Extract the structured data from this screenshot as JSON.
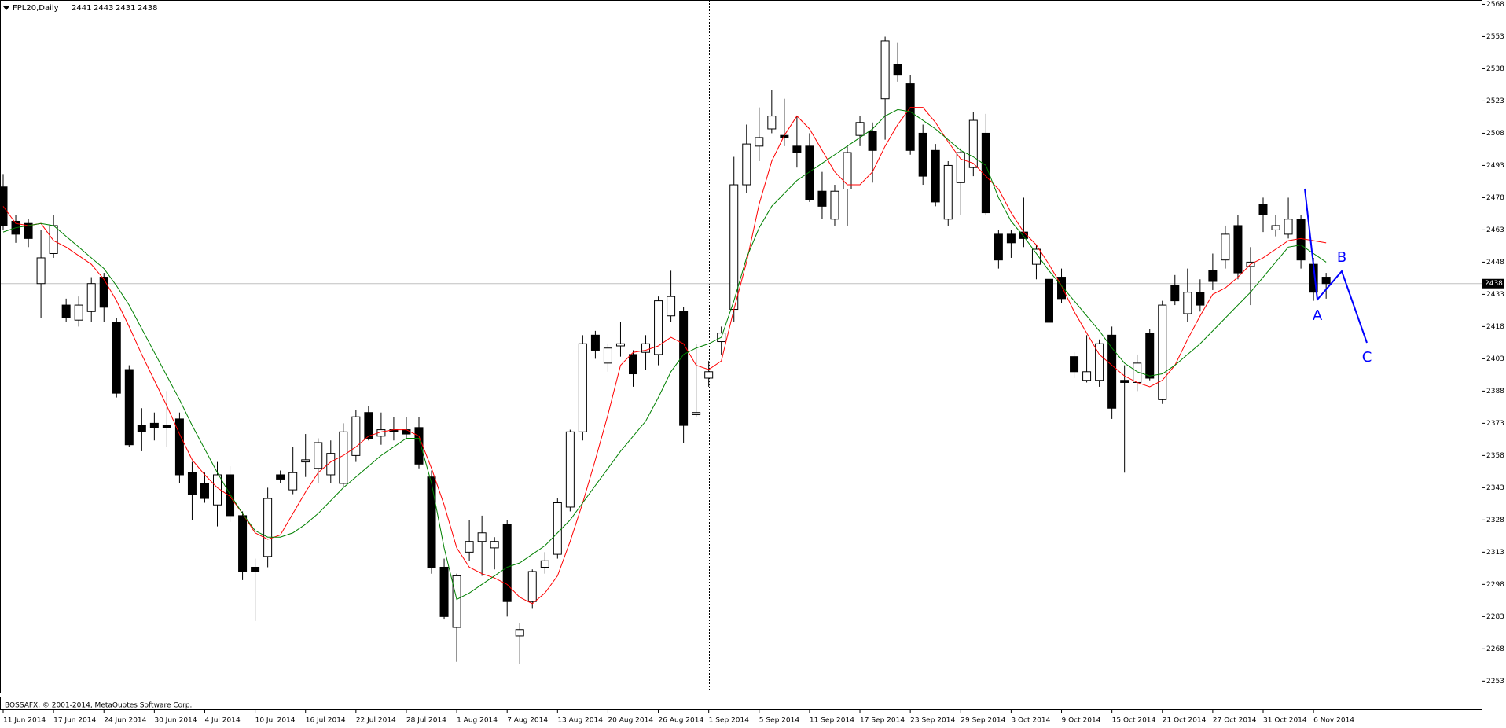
{
  "chart_data": {
    "type": "candlestick",
    "title": "FPL20,Daily",
    "copyright": "BOSSAFX, © 2001-2014, MetaQuotes Software Corp.",
    "categories": [
      "11 Jun 2014",
      null,
      null,
      null,
      "17 Jun 2014",
      null,
      null,
      null,
      "24 Jun 2014",
      null,
      null,
      null,
      "30 Jun 2014",
      null,
      null,
      null,
      "4 Jul 2014",
      null,
      null,
      null,
      "10 Jul 2014",
      null,
      null,
      null,
      "16 Jul 2014",
      null,
      null,
      null,
      "22 Jul 2014",
      null,
      null,
      null,
      "28 Jul 2014",
      null,
      null,
      null,
      "1 Aug 2014",
      null,
      null,
      null,
      "7 Aug 2014",
      null,
      null,
      null,
      "13 Aug 2014",
      null,
      null,
      null,
      "20 Aug 2014",
      null,
      null,
      null,
      "26 Aug 2014",
      null,
      null,
      null,
      "1 Sep 2014",
      null,
      null,
      null,
      "5 Sep 2014",
      null,
      null,
      null,
      "11 Sep 2014",
      null,
      null,
      null,
      "17 Sep 2014",
      null,
      null,
      null,
      "23 Sep 2014",
      null,
      null,
      null,
      "29 Sep 2014",
      null,
      null,
      null,
      "3 Oct 2014",
      null,
      null,
      null,
      "9 Oct 2014",
      null,
      null,
      null,
      "15 Oct 2014",
      null,
      null,
      null,
      "21 Oct 2014",
      null,
      null,
      null,
      "27 Oct 2014",
      null,
      null,
      null,
      "31 Oct 2014",
      null,
      null,
      null,
      "6 Nov 2014",
      null
    ],
    "open": [
      2483,
      2467,
      2466,
      2438,
      2452,
      2428,
      2421,
      2425,
      2441,
      2420,
      2398,
      2372,
      2373,
      2372,
      2375,
      2350,
      2345,
      2335,
      2349,
      2330,
      2306,
      2311,
      2349,
      2342,
      2355,
      2352,
      2349,
      2345,
      2358,
      2378,
      2367,
      2370,
      2370,
      2371,
      2348,
      2306,
      2278,
      2313,
      2318,
      2315,
      2326,
      2274,
      2290,
      2306,
      2312,
      2334,
      2369,
      2414,
      2401,
      2409,
      2405,
      2406,
      2405,
      2423,
      2425,
      2377,
      2394,
      2411,
      2426,
      2484,
      2502,
      2510,
      2507,
      2502,
      2502,
      2481,
      2468,
      2482,
      2507,
      2509,
      2524,
      2540,
      2531,
      2508,
      2500,
      2468,
      2485,
      2492,
      2508,
      2461,
      2461,
      2462,
      2447,
      2440,
      2441,
      2404,
      2393,
      2393,
      2414,
      2393,
      2392,
      2415,
      2384,
      2437,
      2424,
      2434,
      2444,
      2449,
      2465,
      2446,
      2475,
      2463,
      2461,
      2468,
      2447,
      2441
    ],
    "high": [
      2489,
      2470,
      2468,
      2463,
      2470,
      2431,
      2432,
      2441,
      2443,
      2422,
      2400,
      2380,
      2378,
      2388,
      2378,
      2355,
      2350,
      2355,
      2353,
      2332,
      2310,
      2343,
      2351,
      2362,
      2368,
      2366,
      2365,
      2373,
      2379,
      2381,
      2378,
      2376,
      2376,
      2376,
      2351,
      2310,
      2303,
      2328,
      2330,
      2320,
      2328,
      2280,
      2305,
      2313,
      2338,
      2370,
      2414,
      2416,
      2410,
      2420,
      2407,
      2414,
      2432,
      2444,
      2427,
      2410,
      2402,
      2418,
      2497,
      2512,
      2520,
      2528,
      2524,
      2516,
      2508,
      2490,
      2484,
      2502,
      2516,
      2513,
      2553,
      2550,
      2535,
      2512,
      2503,
      2495,
      2501,
      2518,
      2517,
      2463,
      2463,
      2478,
      2456,
      2443,
      2445,
      2406,
      2414,
      2412,
      2418,
      2400,
      2405,
      2417,
      2430,
      2442,
      2445,
      2440,
      2452,
      2465,
      2470,
      2455,
      2478,
      2470,
      2478,
      2470,
      2450,
      2443
    ],
    "low": [
      2463,
      2457,
      2455,
      2422,
      2450,
      2420,
      2418,
      2420,
      2420,
      2385,
      2362,
      2360,
      2365,
      2362,
      2345,
      2328,
      2336,
      2325,
      2327,
      2300,
      2281,
      2306,
      2345,
      2340,
      2348,
      2345,
      2345,
      2343,
      2355,
      2365,
      2363,
      2365,
      2366,
      2352,
      2303,
      2282,
      2262,
      2309,
      2302,
      2305,
      2283,
      2261,
      2287,
      2303,
      2310,
      2332,
      2365,
      2403,
      2397,
      2404,
      2390,
      2398,
      2400,
      2420,
      2364,
      2376,
      2390,
      2405,
      2420,
      2480,
      2495,
      2508,
      2502,
      2492,
      2476,
      2468,
      2465,
      2465,
      2502,
      2485,
      2505,
      2532,
      2498,
      2484,
      2474,
      2465,
      2470,
      2488,
      2470,
      2445,
      2450,
      2455,
      2440,
      2418,
      2429,
      2394,
      2392,
      2390,
      2375,
      2350,
      2388,
      2393,
      2382,
      2428,
      2420,
      2425,
      2435,
      2445,
      2440,
      2428,
      2462,
      2460,
      2459,
      2445,
      2430,
      2431
    ],
    "close": [
      2465,
      2461,
      2459,
      2450,
      2465,
      2422,
      2428,
      2438,
      2427,
      2387,
      2363,
      2369,
      2371,
      2371,
      2349,
      2340,
      2338,
      2349,
      2330,
      2304,
      2304,
      2338,
      2347,
      2350,
      2356,
      2364,
      2359,
      2369,
      2376,
      2366,
      2370,
      2369,
      2368,
      2354,
      2306,
      2283,
      2302,
      2318,
      2322,
      2318,
      2290,
      2277,
      2304,
      2309,
      2336,
      2369,
      2410,
      2407,
      2408,
      2410,
      2396,
      2410,
      2430,
      2432,
      2372,
      2378,
      2397,
      2415,
      2484,
      2503,
      2506,
      2516,
      2506,
      2499,
      2477,
      2474,
      2481,
      2499,
      2513,
      2500,
      2551,
      2535,
      2500,
      2488,
      2476,
      2493,
      2499,
      2514,
      2471,
      2449,
      2457,
      2459,
      2454,
      2420,
      2431,
      2397,
      2397,
      2410,
      2380,
      2392,
      2401,
      2394,
      2428,
      2430,
      2434,
      2428,
      2439,
      2461,
      2443,
      2448,
      2470,
      2465,
      2468,
      2449,
      2434,
      2438
    ],
    "up_color": "#ffffff",
    "down_color": "#000000",
    "lines": [
      {
        "color": "#ff0000",
        "values": [
          2474,
          2466,
          2465,
          2466,
          2458,
          2455,
          2451,
          2447,
          2440,
          2430,
          2418,
          2405,
          2393,
          2381,
          2368,
          2356,
          2349,
          2343,
          2339,
          2331,
          2322,
          2319,
          2321,
          2331,
          2341,
          2350,
          2355,
          2358,
          2362,
          2367,
          2369,
          2370,
          2370,
          2367,
          2352,
          2335,
          2315,
          2306,
          2303,
          2301,
          2298,
          2292,
          2289,
          2294,
          2302,
          2318,
          2336,
          2356,
          2377,
          2400,
          2406,
          2407,
          2409,
          2413,
          2410,
          2400,
          2398,
          2402,
          2426,
          2448,
          2475,
          2495,
          2507,
          2516,
          2510,
          2500,
          2490,
          2484,
          2484,
          2490,
          2502,
          2512,
          2520,
          2520,
          2513,
          2504,
          2496,
          2494,
          2488,
          2482,
          2471,
          2462,
          2456,
          2447,
          2437,
          2425,
          2415,
          2405,
          2400,
          2395,
          2392,
          2390,
          2393,
          2400,
          2412,
          2423,
          2433,
          2436,
          2441,
          2447,
          2450,
          2454,
          2458,
          2459,
          2458,
          2457
        ]
      },
      {
        "color": "#008000",
        "values": [
          2462,
          2464,
          2465,
          2466,
          2465,
          2460,
          2455,
          2450,
          2445,
          2437,
          2428,
          2417,
          2406,
          2395,
          2384,
          2372,
          2361,
          2350,
          2340,
          2331,
          2323,
          2320,
          2320,
          2322,
          2326,
          2331,
          2337,
          2343,
          2348,
          2353,
          2358,
          2362,
          2366,
          2366,
          2345,
          2315,
          2291,
          2294,
          2298,
          2302,
          2306,
          2308,
          2312,
          2316,
          2322,
          2328,
          2336,
          2344,
          2352,
          2360,
          2367,
          2374,
          2385,
          2397,
          2405,
          2408,
          2410,
          2413,
          2430,
          2450,
          2464,
          2474,
          2480,
          2486,
          2490,
          2494,
          2498,
          2502,
          2506,
          2510,
          2516,
          2519,
          2518,
          2514,
          2510,
          2505,
          2500,
          2497,
          2493,
          2478,
          2467,
          2460,
          2452,
          2444,
          2437,
          2430,
          2423,
          2416,
          2408,
          2401,
          2397,
          2395,
          2396,
          2400,
          2405,
          2410,
          2416,
          2422,
          2428,
          2434,
          2441,
          2448,
          2455,
          2456,
          2452,
          2448
        ]
      }
    ],
    "wave_labels": [
      "A",
      "B",
      "C"
    ],
    "ylim": [
      2248,
      2570
    ],
    "yticks": [
      2253,
      2268,
      2283,
      2298,
      2313,
      2328,
      2343,
      2358,
      2373,
      2388,
      2403,
      2418,
      2433,
      2448,
      2463,
      2478,
      2493,
      2508,
      2523,
      2538,
      2553,
      2568
    ],
    "grid": false
  }
}
